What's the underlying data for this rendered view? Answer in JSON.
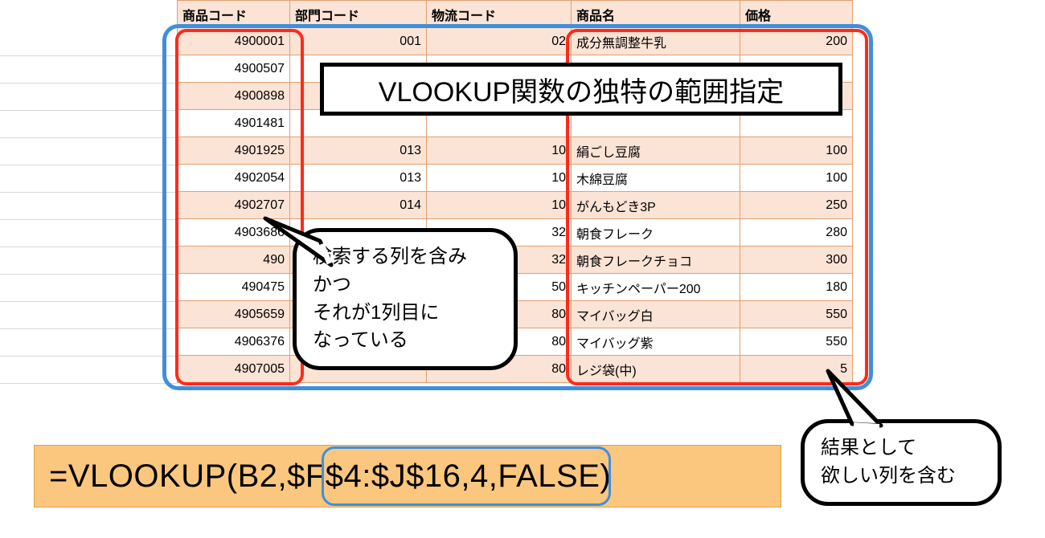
{
  "table": {
    "headers": [
      "商品コード",
      "部門コード",
      "物流コード",
      "商品名",
      "価格"
    ],
    "rows": [
      {
        "code": "4900001",
        "dept": "001",
        "log": "02",
        "name": "成分無調整牛乳",
        "price": "200",
        "alt": true
      },
      {
        "code": "4900507",
        "dept": "",
        "log": "",
        "name": "",
        "price": "",
        "alt": false
      },
      {
        "code": "4900898",
        "dept": "",
        "log": "",
        "name": "",
        "price": "",
        "alt": true
      },
      {
        "code": "4901481",
        "dept": "",
        "log": "",
        "name": "",
        "price": "",
        "alt": false
      },
      {
        "code": "4901925",
        "dept": "013",
        "log": "10",
        "name": "絹ごし豆腐",
        "price": "100",
        "alt": true
      },
      {
        "code": "4902054",
        "dept": "013",
        "log": "10",
        "name": "木綿豆腐",
        "price": "100",
        "alt": false
      },
      {
        "code": "4902707",
        "dept": "014",
        "log": "10",
        "name": "がんもどき3P",
        "price": "250",
        "alt": true
      },
      {
        "code": "4903686",
        "dept": "",
        "log": "32",
        "name": "朝食フレーク",
        "price": "280",
        "alt": false
      },
      {
        "code": "490",
        "dept": "",
        "log": "32",
        "name": "朝食フレークチョコ",
        "price": "300",
        "alt": true
      },
      {
        "code": "490475",
        "dept": "",
        "log": "50",
        "name": "キッチンペーパー200",
        "price": "180",
        "alt": false
      },
      {
        "code": "4905659",
        "dept": "",
        "log": "80",
        "name": "マイバッグ白",
        "price": "550",
        "alt": true
      },
      {
        "code": "4906376",
        "dept": "",
        "log": "80",
        "name": "マイバッグ紫",
        "price": "550",
        "alt": false
      },
      {
        "code": "4907005",
        "dept": "",
        "log": "80",
        "name": "レジ袋(中)",
        "price": "5",
        "alt": true
      }
    ]
  },
  "title": "VLOOKUP関数の独特の範囲指定",
  "callout1": {
    "line1": "検索する列を含み",
    "line2": "かつ",
    "line3": "それが1列目に",
    "line4": "なっている"
  },
  "callout2": {
    "line1": "結果として",
    "line2": "欲しい列を含む"
  },
  "formula": {
    "p1": "=VLOOKUP(B2,",
    "p2": "$F$4:$J$16,",
    "p3": "4,FALSE)"
  },
  "colors": {
    "header_bg": "#fbe3d5",
    "row_alt_bg": "#fbe3d5",
    "border": "#e0a070",
    "blue": "#3f8fdc",
    "red": "#ff2a1a",
    "formula_bg": "#fbc77e"
  }
}
